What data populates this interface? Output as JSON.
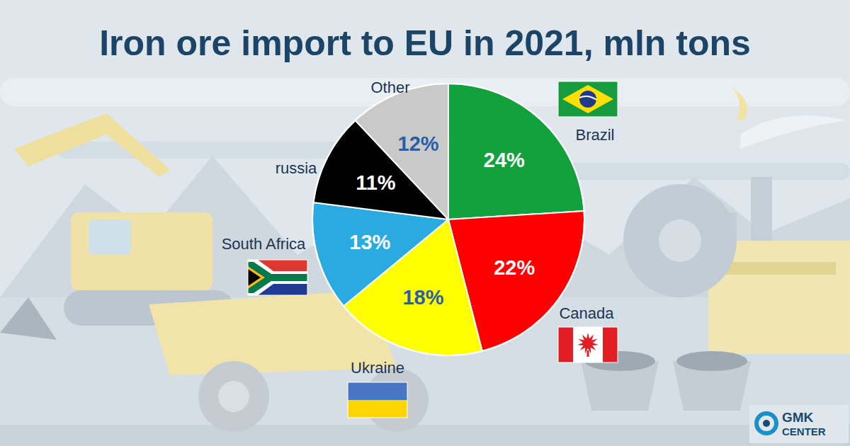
{
  "chart_data": {
    "type": "pie",
    "title": "Iron ore import to EU in 2021, mln tons",
    "categories": [
      "Brazil",
      "Canada",
      "Ukraine",
      "South Africa",
      "russia",
      "Other"
    ],
    "values": [
      24,
      22,
      18,
      13,
      11,
      12
    ],
    "value_labels": [
      "24%",
      "22%",
      "18%",
      "13%",
      "11%",
      "12%"
    ],
    "colors": [
      "#13a13d",
      "#ff0000",
      "#ffff00",
      "#29abe2",
      "#000000",
      "#c9c9c9"
    ],
    "data_labels": true
  },
  "logo": {
    "lines": [
      "GMK",
      "CENTER"
    ]
  }
}
